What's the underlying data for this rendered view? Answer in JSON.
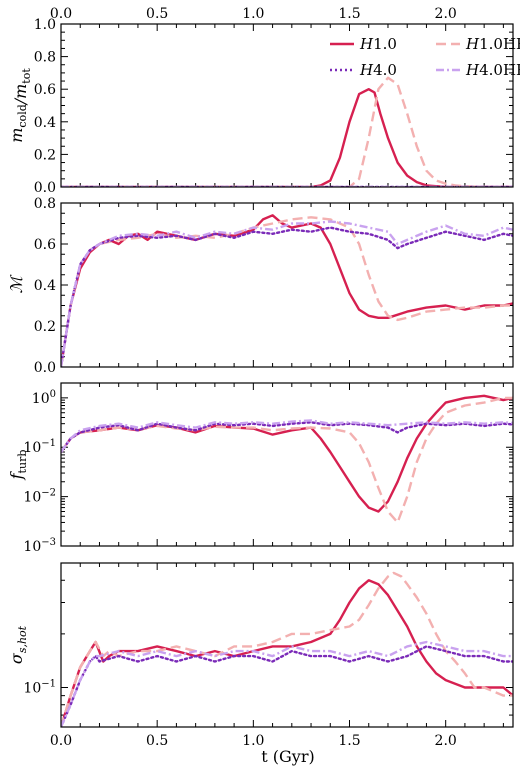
{
  "figure": {
    "xlabel": "t (Gyr)",
    "colors": {
      "H1.0": "#d62050",
      "H1.0HR": "#f3b0b0",
      "H4.0": "#7a2ab8",
      "H4.0HR": "#c9a2ef"
    },
    "legend": [
      {
        "name": "H1.0",
        "style": "solid"
      },
      {
        "name": "H1.0HR",
        "style": "dashed"
      },
      {
        "name": "H4.0",
        "style": "dotted"
      },
      {
        "name": "H4.0HR",
        "style": "dashdot"
      }
    ]
  },
  "chart_data": [
    {
      "type": "line",
      "ylabel": "m_cold/m_tot",
      "xlim": [
        0,
        2.35
      ],
      "ylim": [
        0,
        1.0
      ],
      "yscale": "linear",
      "xticks": [
        0.0,
        0.5,
        1.0,
        1.5,
        2.0
      ],
      "xtick_labels_top": [
        "0.0",
        "0.5",
        "1.0",
        "1.5",
        "2.0"
      ],
      "yticks": [
        0.0,
        0.2,
        0.4,
        0.6,
        0.8,
        1.0
      ],
      "ytick_labels": [
        "0.0",
        "0.2",
        "0.4",
        "0.6",
        "0.8",
        "1.0"
      ],
      "legend_position": "top-right",
      "series": [
        {
          "name": "H1.0",
          "x": [
            0,
            1.3,
            1.35,
            1.4,
            1.45,
            1.5,
            1.55,
            1.6,
            1.63,
            1.66,
            1.7,
            1.75,
            1.8,
            1.85,
            1.9,
            1.95,
            2.0,
            2.35
          ],
          "y": [
            0,
            0,
            0.01,
            0.04,
            0.18,
            0.4,
            0.57,
            0.6,
            0.58,
            0.45,
            0.3,
            0.15,
            0.07,
            0.03,
            0.01,
            0.005,
            0,
            0
          ]
        },
        {
          "name": "H1.0HR",
          "x": [
            0,
            1.5,
            1.55,
            1.6,
            1.65,
            1.7,
            1.75,
            1.8,
            1.85,
            1.9,
            1.95,
            2.0,
            2.05,
            2.1,
            2.2,
            2.35
          ],
          "y": [
            0,
            0,
            0.05,
            0.3,
            0.6,
            0.67,
            0.63,
            0.45,
            0.25,
            0.1,
            0.04,
            0.02,
            0.01,
            0.005,
            0,
            0
          ]
        },
        {
          "name": "H4.0",
          "x": [
            0,
            2.35
          ],
          "y": [
            0,
            0
          ]
        },
        {
          "name": "H4.0HR",
          "x": [
            0,
            2.35
          ],
          "y": [
            0,
            0
          ]
        }
      ]
    },
    {
      "type": "line",
      "ylabel": "M",
      "xlim": [
        0,
        2.35
      ],
      "ylim": [
        0,
        0.8
      ],
      "yscale": "linear",
      "xticks": [
        0.0,
        0.5,
        1.0,
        1.5,
        2.0
      ],
      "yticks": [
        0.0,
        0.2,
        0.4,
        0.6,
        0.8
      ],
      "ytick_labels": [
        "0.0",
        "0.2",
        "0.4",
        "0.6",
        "0.8"
      ],
      "series": [
        {
          "name": "H1.0",
          "x": [
            0,
            0.05,
            0.1,
            0.15,
            0.2,
            0.25,
            0.3,
            0.35,
            0.4,
            0.45,
            0.5,
            0.6,
            0.7,
            0.8,
            0.9,
            1.0,
            1.05,
            1.1,
            1.15,
            1.2,
            1.3,
            1.35,
            1.4,
            1.45,
            1.5,
            1.55,
            1.6,
            1.65,
            1.7,
            1.8,
            1.9,
            2.0,
            2.1,
            2.2,
            2.3,
            2.35
          ],
          "y": [
            0,
            0.3,
            0.48,
            0.56,
            0.6,
            0.62,
            0.6,
            0.64,
            0.65,
            0.62,
            0.66,
            0.64,
            0.62,
            0.65,
            0.64,
            0.67,
            0.72,
            0.74,
            0.7,
            0.68,
            0.7,
            0.68,
            0.6,
            0.48,
            0.36,
            0.28,
            0.25,
            0.24,
            0.24,
            0.27,
            0.29,
            0.3,
            0.28,
            0.3,
            0.3,
            0.31
          ]
        },
        {
          "name": "H1.0HR",
          "x": [
            0,
            0.05,
            0.1,
            0.15,
            0.2,
            0.3,
            0.4,
            0.5,
            0.6,
            0.7,
            0.8,
            0.9,
            1.0,
            1.1,
            1.2,
            1.3,
            1.4,
            1.5,
            1.55,
            1.6,
            1.65,
            1.7,
            1.75,
            1.8,
            1.9,
            2.0,
            2.1,
            2.2,
            2.3,
            2.35
          ],
          "y": [
            0,
            0.3,
            0.5,
            0.57,
            0.6,
            0.62,
            0.63,
            0.65,
            0.63,
            0.64,
            0.63,
            0.65,
            0.68,
            0.7,
            0.72,
            0.73,
            0.72,
            0.68,
            0.6,
            0.45,
            0.32,
            0.25,
            0.23,
            0.24,
            0.27,
            0.28,
            0.29,
            0.29,
            0.3,
            0.3
          ]
        },
        {
          "name": "H4.0",
          "x": [
            0,
            0.05,
            0.1,
            0.15,
            0.2,
            0.3,
            0.4,
            0.5,
            0.6,
            0.7,
            0.8,
            0.9,
            1.0,
            1.1,
            1.2,
            1.3,
            1.4,
            1.5,
            1.6,
            1.7,
            1.75,
            1.8,
            1.9,
            2.0,
            2.1,
            2.2,
            2.3,
            2.35
          ],
          "y": [
            0,
            0.3,
            0.5,
            0.57,
            0.6,
            0.63,
            0.64,
            0.63,
            0.64,
            0.62,
            0.65,
            0.63,
            0.66,
            0.65,
            0.67,
            0.66,
            0.68,
            0.66,
            0.65,
            0.62,
            0.58,
            0.6,
            0.63,
            0.66,
            0.64,
            0.62,
            0.65,
            0.64
          ]
        },
        {
          "name": "H4.0HR",
          "x": [
            0,
            0.05,
            0.1,
            0.15,
            0.2,
            0.3,
            0.4,
            0.5,
            0.6,
            0.7,
            0.8,
            0.9,
            1.0,
            1.1,
            1.2,
            1.3,
            1.4,
            1.5,
            1.6,
            1.7,
            1.75,
            1.8,
            1.9,
            2.0,
            2.1,
            2.2,
            2.3,
            2.35
          ],
          "y": [
            0,
            0.3,
            0.5,
            0.57,
            0.6,
            0.64,
            0.65,
            0.64,
            0.66,
            0.63,
            0.66,
            0.65,
            0.68,
            0.67,
            0.7,
            0.7,
            0.71,
            0.7,
            0.68,
            0.66,
            0.6,
            0.62,
            0.66,
            0.69,
            0.65,
            0.64,
            0.68,
            0.67
          ]
        }
      ]
    },
    {
      "type": "line",
      "ylabel": "f_turb",
      "xlim": [
        0,
        2.35
      ],
      "ylim": [
        0.001,
        2.0
      ],
      "yscale": "log",
      "xticks": [
        0.0,
        0.5,
        1.0,
        1.5,
        2.0
      ],
      "yticks": [
        0.001,
        0.01,
        0.1,
        1
      ],
      "ytick_labels": [
        "10⁻³",
        "10⁻²",
        "10⁻¹",
        "10⁰"
      ],
      "series": [
        {
          "name": "H1.0",
          "x": [
            0,
            0.05,
            0.1,
            0.2,
            0.3,
            0.4,
            0.5,
            0.6,
            0.7,
            0.8,
            0.9,
            1.0,
            1.1,
            1.2,
            1.3,
            1.35,
            1.4,
            1.45,
            1.5,
            1.55,
            1.6,
            1.65,
            1.7,
            1.75,
            1.8,
            1.85,
            1.9,
            1.95,
            2.0,
            2.1,
            2.2,
            2.3,
            2.35
          ],
          "y": [
            0.08,
            0.15,
            0.2,
            0.22,
            0.25,
            0.22,
            0.28,
            0.25,
            0.2,
            0.27,
            0.25,
            0.24,
            0.18,
            0.22,
            0.25,
            0.15,
            0.08,
            0.04,
            0.02,
            0.01,
            0.006,
            0.005,
            0.008,
            0.02,
            0.06,
            0.15,
            0.3,
            0.5,
            0.8,
            1.0,
            1.1,
            0.9,
            1.0
          ]
        },
        {
          "name": "H1.0HR",
          "x": [
            0,
            0.05,
            0.1,
            0.2,
            0.3,
            0.4,
            0.5,
            0.6,
            0.7,
            0.8,
            0.9,
            1.0,
            1.1,
            1.2,
            1.3,
            1.4,
            1.5,
            1.55,
            1.6,
            1.65,
            1.7,
            1.75,
            1.8,
            1.85,
            1.9,
            1.95,
            2.0,
            2.1,
            2.2,
            2.3,
            2.35
          ],
          "y": [
            0.08,
            0.15,
            0.2,
            0.22,
            0.25,
            0.23,
            0.27,
            0.24,
            0.22,
            0.26,
            0.25,
            0.25,
            0.22,
            0.24,
            0.25,
            0.24,
            0.2,
            0.12,
            0.05,
            0.015,
            0.005,
            0.003,
            0.01,
            0.05,
            0.15,
            0.3,
            0.5,
            0.7,
            0.8,
            1.0,
            1.0
          ]
        },
        {
          "name": "H4.0",
          "x": [
            0,
            0.05,
            0.1,
            0.2,
            0.3,
            0.4,
            0.5,
            0.6,
            0.7,
            0.8,
            0.9,
            1.0,
            1.1,
            1.2,
            1.3,
            1.4,
            1.5,
            1.6,
            1.7,
            1.75,
            1.8,
            1.9,
            2.0,
            2.1,
            2.2,
            2.3,
            2.35
          ],
          "y": [
            0.08,
            0.15,
            0.2,
            0.25,
            0.28,
            0.22,
            0.3,
            0.25,
            0.22,
            0.3,
            0.28,
            0.3,
            0.27,
            0.3,
            0.32,
            0.28,
            0.3,
            0.28,
            0.25,
            0.2,
            0.25,
            0.3,
            0.28,
            0.3,
            0.27,
            0.3,
            0.29
          ]
        },
        {
          "name": "H4.0HR",
          "x": [
            0,
            0.05,
            0.1,
            0.2,
            0.3,
            0.4,
            0.5,
            0.6,
            0.7,
            0.8,
            0.9,
            1.0,
            1.1,
            1.2,
            1.3,
            1.4,
            1.5,
            1.6,
            1.7,
            1.8,
            1.9,
            2.0,
            2.1,
            2.2,
            2.3,
            2.35
          ],
          "y": [
            0.08,
            0.15,
            0.22,
            0.27,
            0.3,
            0.25,
            0.32,
            0.28,
            0.25,
            0.32,
            0.3,
            0.32,
            0.3,
            0.33,
            0.35,
            0.3,
            0.32,
            0.3,
            0.28,
            0.3,
            0.32,
            0.3,
            0.32,
            0.3,
            0.32,
            0.31
          ]
        }
      ]
    },
    {
      "type": "line",
      "ylabel": "σ_s,hot",
      "xlim": [
        0,
        2.35
      ],
      "ylim": [
        0.06,
        0.5
      ],
      "yscale": "log",
      "xticks": [
        0.0,
        0.5,
        1.0,
        1.5,
        2.0
      ],
      "xtick_labels": [
        "0.0",
        "0.5",
        "1.0",
        "1.5",
        "2.0"
      ],
      "yticks": [
        0.1
      ],
      "ytick_labels": [
        "10⁻¹"
      ],
      "series": [
        {
          "name": "H1.0",
          "x": [
            0,
            0.05,
            0.1,
            0.15,
            0.18,
            0.22,
            0.25,
            0.3,
            0.4,
            0.5,
            0.6,
            0.7,
            0.8,
            0.9,
            1.0,
            1.1,
            1.2,
            1.3,
            1.4,
            1.45,
            1.5,
            1.55,
            1.6,
            1.65,
            1.7,
            1.75,
            1.8,
            1.85,
            1.9,
            1.95,
            2.0,
            2.1,
            2.2,
            2.3,
            2.35
          ],
          "y": [
            0.06,
            0.09,
            0.13,
            0.16,
            0.18,
            0.14,
            0.15,
            0.16,
            0.16,
            0.17,
            0.16,
            0.15,
            0.16,
            0.15,
            0.16,
            0.17,
            0.17,
            0.18,
            0.2,
            0.24,
            0.3,
            0.36,
            0.4,
            0.38,
            0.33,
            0.27,
            0.22,
            0.17,
            0.14,
            0.12,
            0.11,
            0.1,
            0.1,
            0.1,
            0.09
          ]
        },
        {
          "name": "H1.0HR",
          "x": [
            0,
            0.05,
            0.1,
            0.15,
            0.18,
            0.22,
            0.25,
            0.3,
            0.4,
            0.5,
            0.6,
            0.7,
            0.8,
            0.9,
            1.0,
            1.1,
            1.2,
            1.3,
            1.4,
            1.5,
            1.55,
            1.6,
            1.65,
            1.7,
            1.73,
            1.77,
            1.8,
            1.85,
            1.9,
            1.95,
            2.0,
            2.05,
            2.1,
            2.15,
            2.2,
            2.3,
            2.35
          ],
          "y": [
            0.06,
            0.09,
            0.13,
            0.16,
            0.18,
            0.15,
            0.16,
            0.15,
            0.16,
            0.16,
            0.17,
            0.16,
            0.15,
            0.17,
            0.17,
            0.18,
            0.2,
            0.2,
            0.21,
            0.22,
            0.24,
            0.29,
            0.36,
            0.42,
            0.44,
            0.42,
            0.38,
            0.32,
            0.26,
            0.2,
            0.16,
            0.14,
            0.12,
            0.1,
            0.1,
            0.09,
            0.09
          ]
        },
        {
          "name": "H4.0",
          "x": [
            0,
            0.05,
            0.1,
            0.15,
            0.18,
            0.2,
            0.3,
            0.4,
            0.5,
            0.6,
            0.7,
            0.8,
            0.9,
            1.0,
            1.1,
            1.2,
            1.3,
            1.4,
            1.5,
            1.6,
            1.7,
            1.8,
            1.9,
            2.0,
            2.1,
            2.2,
            2.3,
            2.35
          ],
          "y": [
            0.06,
            0.08,
            0.11,
            0.14,
            0.15,
            0.14,
            0.15,
            0.14,
            0.15,
            0.14,
            0.15,
            0.14,
            0.15,
            0.15,
            0.14,
            0.16,
            0.15,
            0.15,
            0.14,
            0.15,
            0.14,
            0.15,
            0.17,
            0.16,
            0.15,
            0.15,
            0.14,
            0.14
          ]
        },
        {
          "name": "H4.0HR",
          "x": [
            0,
            0.05,
            0.1,
            0.15,
            0.18,
            0.2,
            0.3,
            0.4,
            0.5,
            0.6,
            0.7,
            0.8,
            0.9,
            1.0,
            1.1,
            1.2,
            1.3,
            1.4,
            1.5,
            1.6,
            1.7,
            1.8,
            1.9,
            2.0,
            2.1,
            2.2,
            2.3,
            2.35
          ],
          "y": [
            0.06,
            0.08,
            0.11,
            0.14,
            0.15,
            0.15,
            0.16,
            0.15,
            0.16,
            0.15,
            0.16,
            0.15,
            0.16,
            0.16,
            0.15,
            0.17,
            0.16,
            0.16,
            0.15,
            0.16,
            0.15,
            0.17,
            0.18,
            0.17,
            0.16,
            0.16,
            0.15,
            0.15
          ]
        }
      ]
    }
  ]
}
